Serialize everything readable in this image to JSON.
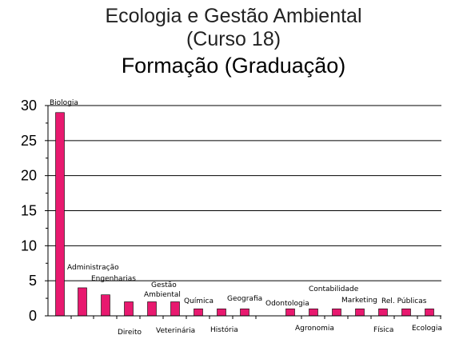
{
  "header": {
    "line1": "Ecologia e Gestão Ambiental",
    "line2": "(Curso 18)",
    "line3": "Formação (Graduação)"
  },
  "chart_data": {
    "type": "bar",
    "categories": [
      "Biologia",
      "Administração",
      "Engenharias",
      "Direito",
      "Gestão Ambiental",
      "Veterinária",
      "Química",
      "História",
      "Geografia",
      "Odontologia",
      "Contabilidade",
      "Agronomia",
      "Marketing",
      "Física",
      "Rel. Públicas",
      "Ecologia"
    ],
    "values": [
      29,
      4,
      3,
      2,
      2,
      2,
      1,
      1,
      1,
      1,
      1,
      1,
      1,
      1,
      1,
      1
    ],
    "ylim": [
      0,
      30
    ],
    "yticks": [
      0,
      5,
      10,
      15,
      20,
      25,
      30
    ],
    "title": "Formação (Graduação)",
    "xlabel": "",
    "ylabel": "",
    "grid": true,
    "bar_color": "#E8196F"
  }
}
